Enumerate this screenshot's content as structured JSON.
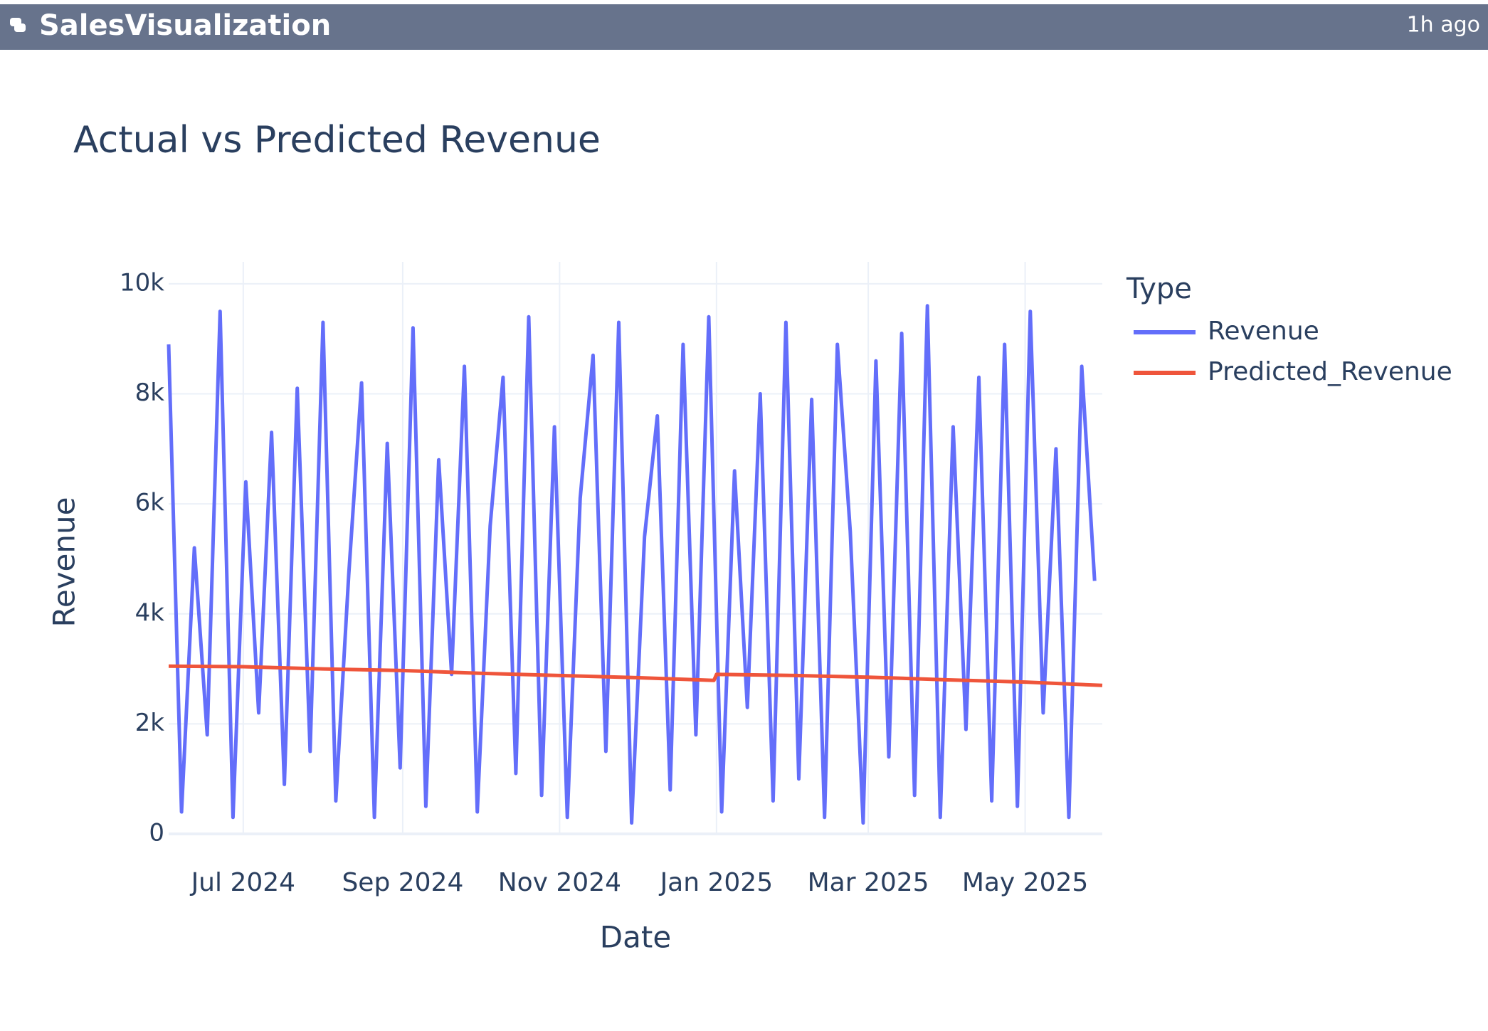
{
  "header": {
    "title": "SalesVisualization",
    "time": "1h ago"
  },
  "chart_data": {
    "type": "line",
    "title": "Actual vs Predicted Revenue",
    "x_label": "Date",
    "y_label": "Revenue",
    "legend_title": "Type",
    "legend_position": "right",
    "grid": true,
    "xlim": [
      "2024-06-02",
      "2025-05-31"
    ],
    "xticks": [
      {
        "value": "2024-07-01",
        "label": "Jul 2024"
      },
      {
        "value": "2024-09-01",
        "label": "Sep 2024"
      },
      {
        "value": "2024-11-01",
        "label": "Nov 2024"
      },
      {
        "value": "2025-01-01",
        "label": "Jan 2025"
      },
      {
        "value": "2025-03-01",
        "label": "Mar 2025"
      },
      {
        "value": "2025-05-01",
        "label": "May 2025"
      }
    ],
    "ylim": [
      0,
      10400
    ],
    "yticks": [
      0,
      {
        "value": 2000,
        "label": "2k"
      },
      {
        "value": 4000,
        "label": "4k"
      },
      {
        "value": 6000,
        "label": "6k"
      },
      {
        "value": 8000,
        "label": "8k"
      },
      {
        "value": 10000,
        "label": "10k"
      }
    ],
    "series": [
      {
        "name": "Revenue",
        "color": "#636efa",
        "x": [
          "2024-06-02",
          "2024-06-07",
          "2024-06-12",
          "2024-06-17",
          "2024-06-22",
          "2024-06-27",
          "2024-07-02",
          "2024-07-07",
          "2024-07-12",
          "2024-07-17",
          "2024-07-22",
          "2024-07-27",
          "2024-08-01",
          "2024-08-06",
          "2024-08-11",
          "2024-08-16",
          "2024-08-21",
          "2024-08-26",
          "2024-08-31",
          "2024-09-05",
          "2024-09-10",
          "2024-09-15",
          "2024-09-20",
          "2024-09-25",
          "2024-09-30",
          "2024-10-05",
          "2024-10-10",
          "2024-10-15",
          "2024-10-20",
          "2024-10-25",
          "2024-10-30",
          "2024-11-04",
          "2024-11-09",
          "2024-11-14",
          "2024-11-19",
          "2024-11-24",
          "2024-11-29",
          "2024-12-04",
          "2024-12-09",
          "2024-12-14",
          "2024-12-19",
          "2024-12-24",
          "2024-12-29",
          "2025-01-03",
          "2025-01-08",
          "2025-01-13",
          "2025-01-18",
          "2025-01-23",
          "2025-01-28",
          "2025-02-02",
          "2025-02-07",
          "2025-02-12",
          "2025-02-17",
          "2025-02-22",
          "2025-02-27",
          "2025-03-04",
          "2025-03-09",
          "2025-03-14",
          "2025-03-19",
          "2025-03-24",
          "2025-03-29",
          "2025-04-03",
          "2025-04-08",
          "2025-04-13",
          "2025-04-18",
          "2025-04-23",
          "2025-04-28",
          "2025-05-03",
          "2025-05-08",
          "2025-05-13",
          "2025-05-18",
          "2025-05-23",
          "2025-05-28"
        ],
        "values": [
          8900,
          400,
          5200,
          1800,
          9500,
          300,
          6400,
          2200,
          7300,
          900,
          8100,
          1500,
          9300,
          600,
          4700,
          8200,
          300,
          7100,
          1200,
          9200,
          500,
          6800,
          2900,
          8500,
          400,
          5600,
          8300,
          1100,
          9400,
          700,
          7400,
          300,
          6100,
          8700,
          1500,
          9300,
          200,
          5400,
          7600,
          800,
          8900,
          1800,
          9400,
          400,
          6600,
          2300,
          8000,
          600,
          9300,
          1000,
          7900,
          300,
          8900,
          5500,
          200,
          8600,
          1400,
          9100,
          700,
          9600,
          300,
          7400,
          1900,
          8300,
          600,
          8900,
          500,
          9500,
          2200,
          7000,
          300,
          8500,
          4600
        ]
      },
      {
        "name": "Predicted_Revenue",
        "color": "#ef553b",
        "x": [
          "2024-06-02",
          "2024-07-01",
          "2024-08-01",
          "2024-09-01",
          "2024-10-01",
          "2024-11-01",
          "2024-12-01",
          "2024-12-31",
          "2025-01-01",
          "2025-02-01",
          "2025-03-01",
          "2025-04-01",
          "2025-05-01",
          "2025-05-31"
        ],
        "values": [
          3050,
          3040,
          3000,
          2970,
          2920,
          2880,
          2840,
          2790,
          2900,
          2880,
          2850,
          2800,
          2760,
          2700
        ]
      }
    ]
  }
}
